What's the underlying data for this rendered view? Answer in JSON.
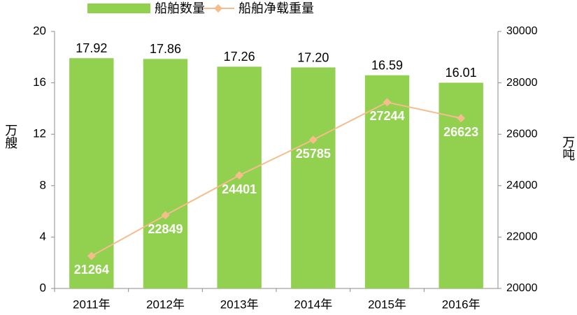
{
  "chart_data": {
    "type": "bar",
    "categories": [
      "2011年",
      "2012年",
      "2013年",
      "2014年",
      "2015年",
      "2016年"
    ],
    "y_label": "万艘",
    "y2_label": "万吨",
    "series": [
      {
        "name": "船舶数量",
        "type": "bar",
        "color": "#92d050",
        "values": [
          17.92,
          17.86,
          17.26,
          17.2,
          16.59,
          16.01
        ],
        "value_labels": [
          "17.92",
          "17.86",
          "17.26",
          "17.20",
          "16.59",
          "16.01"
        ]
      },
      {
        "name": "船舶净载重量",
        "type": "line",
        "axis": "y2",
        "color": "#f5bd8c",
        "values": [
          21264,
          22849,
          24401,
          25785,
          27244,
          26623
        ]
      }
    ],
    "ylim": [
      0,
      20
    ],
    "yticks": [
      0,
      4,
      8,
      12,
      16,
      20
    ],
    "y2lim": [
      20000,
      30000
    ],
    "y2ticks": [
      20000,
      22000,
      24000,
      26000,
      28000,
      30000
    ]
  }
}
